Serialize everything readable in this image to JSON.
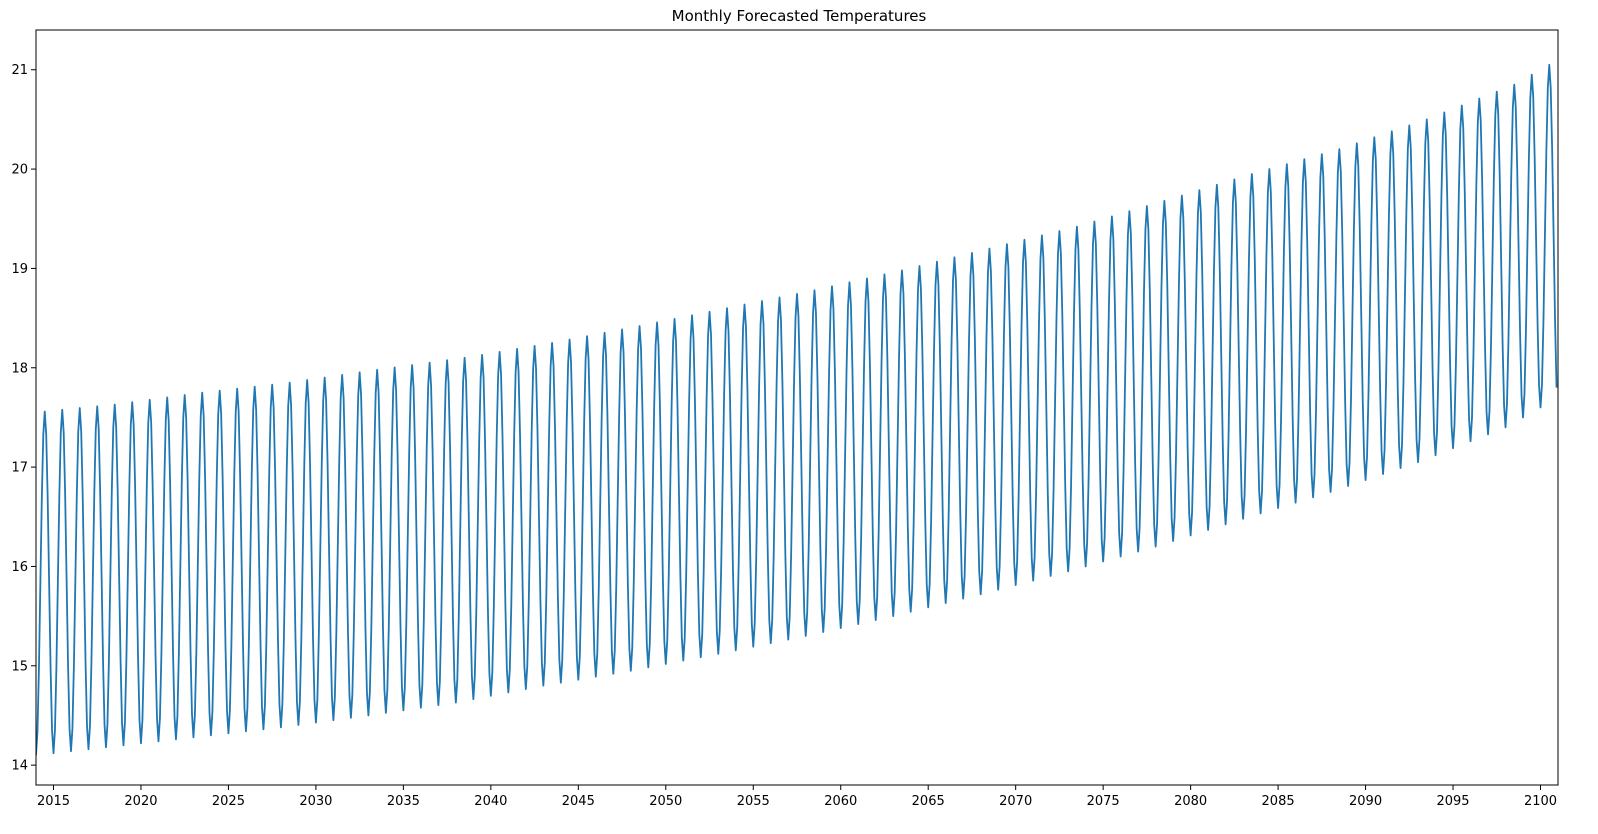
{
  "chart_data": {
    "type": "line",
    "title": "Monthly Forecasted Temperatures",
    "xlabel": "",
    "ylabel": "",
    "xlim": [
      "2014-01",
      "2101-01"
    ],
    "ylim": [
      13.8,
      21.4
    ],
    "yticks": [
      14,
      15,
      16,
      17,
      18,
      19,
      20,
      21
    ],
    "xticks": [
      2015,
      2020,
      2025,
      2030,
      2035,
      2040,
      2045,
      2050,
      2055,
      2060,
      2065,
      2070,
      2075,
      2080,
      2085,
      2090,
      2095,
      2100
    ],
    "grid": false,
    "legend": "none",
    "series": [
      {
        "color": "#1f77b4",
        "x_start": "2014-01",
        "x_end": "2100-12",
        "frequency": "monthly",
        "annual_peaks": [
          [
            "2014-07",
            17.56
          ],
          [
            "2018-07",
            17.63
          ],
          [
            "2023-07",
            17.75
          ],
          [
            "2028-07",
            17.85
          ],
          [
            "2033-07",
            17.98
          ],
          [
            "2038-07",
            18.1
          ],
          [
            "2043-07",
            18.25
          ],
          [
            "2048-07",
            18.42
          ],
          [
            "2053-07",
            18.6
          ],
          [
            "2058-07",
            18.78
          ],
          [
            "2063-07",
            18.98
          ],
          [
            "2068-07",
            19.2
          ],
          [
            "2073-07",
            19.42
          ],
          [
            "2078-07",
            19.68
          ],
          [
            "2083-07",
            19.95
          ],
          [
            "2088-07",
            20.2
          ],
          [
            "2093-07",
            20.5
          ],
          [
            "2098-07",
            20.85
          ],
          [
            "2100-07",
            21.05
          ]
        ],
        "annual_troughs": [
          [
            "2014-01",
            14.1
          ],
          [
            "2018-01",
            14.18
          ],
          [
            "2023-01",
            14.28
          ],
          [
            "2028-01",
            14.38
          ],
          [
            "2033-01",
            14.5
          ],
          [
            "2038-01",
            14.63
          ],
          [
            "2043-01",
            14.8
          ],
          [
            "2048-01",
            14.95
          ],
          [
            "2053-01",
            15.12
          ],
          [
            "2058-01",
            15.3
          ],
          [
            "2063-01",
            15.5
          ],
          [
            "2068-01",
            15.72
          ],
          [
            "2073-01",
            15.95
          ],
          [
            "2078-01",
            16.2
          ],
          [
            "2083-01",
            16.48
          ],
          [
            "2088-01",
            16.75
          ],
          [
            "2093-01",
            17.05
          ],
          [
            "2098-01",
            17.4
          ],
          [
            "2100-01",
            17.6
          ]
        ],
        "final_value": [
          "2100-12",
          17.8
        ]
      }
    ]
  }
}
